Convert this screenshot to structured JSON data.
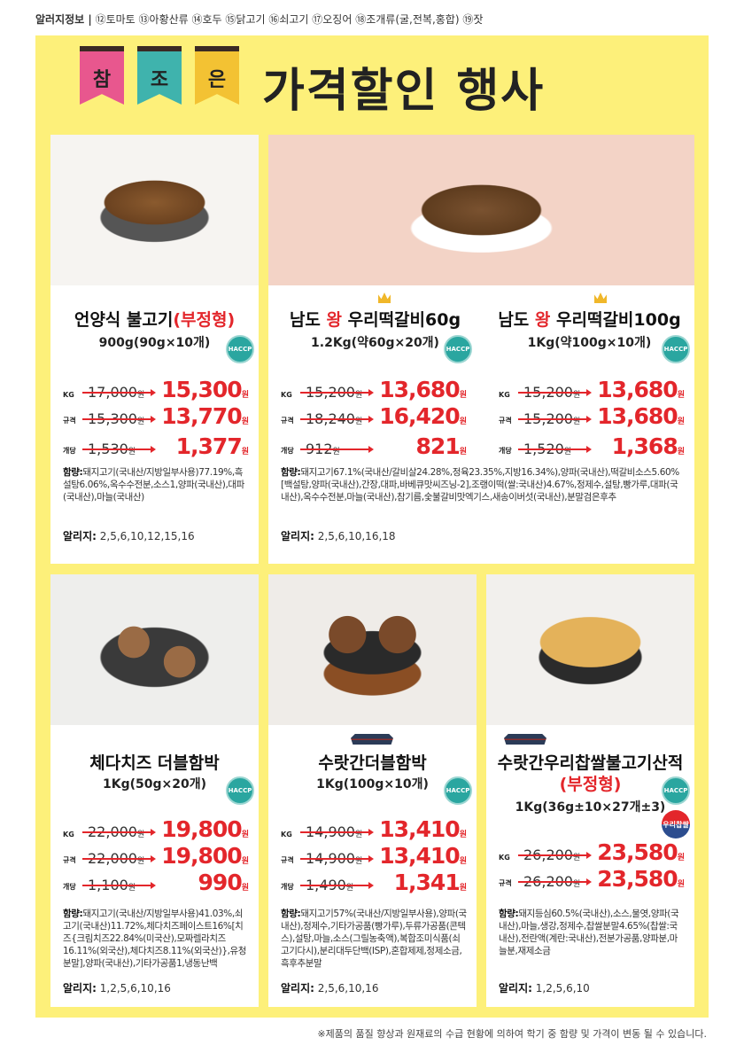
{
  "allergy_info": {
    "label": "알러지정보 |",
    "items": "⑫토마토 ⑬아황산류 ⑭호두 ⑮닭고기 ⑯쇠고기 ⑰오징어 ⑱조개류(굴,전복,홍합) ⑲잣"
  },
  "header": {
    "flags": [
      "참",
      "조",
      "은"
    ],
    "flag_colors": [
      "#e8578e",
      "#3fb3ad",
      "#f3c233"
    ],
    "title": "가격할인 행사"
  },
  "labels": {
    "haccp": "HACCP",
    "woori": "우리찹쌀",
    "won": "원",
    "ingredients": "함량:",
    "allergens": "알리지:"
  },
  "products": [
    {
      "name": "언양식 불고기",
      "name_red": "(부정형)",
      "spec": "900g(90g×10개)",
      "badges": [
        "haccp"
      ],
      "prices": [
        {
          "label": "KG",
          "old": "17,000",
          "new": "15,300"
        },
        {
          "label": "규격",
          "old": "15,300",
          "new": "13,770"
        },
        {
          "label": "개당",
          "old": "1,530",
          "new": "1,377"
        }
      ],
      "ingredients": "돼지고기(국내산/지방일부사용)77.19%,흑설탕6.06%,옥수수전분,소스1,양파(국내산),대파(국내산),마늘(국내산)",
      "allergens": "2,5,6,10,12,15,16"
    },
    {
      "name_pre": "남도 ",
      "name_red": "왕",
      "name": " 우리떡갈비60g",
      "spec": "1.2Kg(약60g×20개)",
      "badges": [
        "haccp",
        "crown"
      ],
      "prices": [
        {
          "label": "KG",
          "old": "15,200",
          "new": "13,680"
        },
        {
          "label": "규격",
          "old": "18,240",
          "new": "16,420"
        },
        {
          "label": "개당",
          "old": "912",
          "new": "821"
        }
      ]
    },
    {
      "name_pre": "남도 ",
      "name_red": "왕",
      "name": " 우리떡갈비100g",
      "spec": "1Kg(약100g×10개)",
      "badges": [
        "haccp",
        "crown"
      ],
      "prices": [
        {
          "label": "KG",
          "old": "15,200",
          "new": "13,680"
        },
        {
          "label": "규격",
          "old": "15,200",
          "new": "13,680"
        },
        {
          "label": "개당",
          "old": "1,520",
          "new": "1,368"
        }
      ]
    },
    {
      "name": "체다치즈 더블함박",
      "spec": "1Kg(50g×20개)",
      "badges": [
        "haccp"
      ],
      "prices": [
        {
          "label": "KG",
          "old": "22,000",
          "new": "19,800"
        },
        {
          "label": "규격",
          "old": "22,000",
          "new": "19,800"
        },
        {
          "label": "개당",
          "old": "1,100",
          "new": "990"
        }
      ],
      "ingredients": "돼지고기(국내산/지방일부사용)41.03%,쇠고기(국내산)11.72%,체다치즈페이스트16%[치즈{크림치즈22.84%(미국산),모짜렐라치즈16.11%(외국산),체다치즈8.11%(외국산)},유청분말],양파(국내산),기타가공품1,냉동난백",
      "allergens": "1,2,5,6,10,16"
    },
    {
      "name": "수랏간더블함박",
      "spec": "1Kg(100g×10개)",
      "badges": [
        "haccp",
        "palace"
      ],
      "prices": [
        {
          "label": "KG",
          "old": "14,900",
          "new": "13,410"
        },
        {
          "label": "규격",
          "old": "14,900",
          "new": "13,410"
        },
        {
          "label": "개당",
          "old": "1,490",
          "new": "1,341"
        }
      ],
      "ingredients": "돼지고기57%(국내산/지방일부사용),양파(국내산),정제수,기타가공품(빵가루),두류가공품(콘텍스),설탕,마늘,소스(그릴농축액),복합조미식품(쇠고기다시),분리대두단백(ISP),혼합제제,정제소금,흑후추분말",
      "allergens": "2,5,6,10,16"
    },
    {
      "name": "수랏간우리찹쌀불고기산적",
      "name_red": "(부정형)",
      "spec": "1Kg(36g±10×27개±3)",
      "badges": [
        "haccp",
        "woori",
        "palace"
      ],
      "prices": [
        {
          "label": "KG",
          "old": "26,200",
          "new": "23,580"
        },
        {
          "label": "규격",
          "old": "26,200",
          "new": "23,580"
        }
      ],
      "ingredients": "돼지등심60.5%(국내산),소스,물엿,양파(국내산),마늘,생강,정제수,찹쌀분말4.65%(찹쌀:국내산),전란액(계란:국내산),전분가공품,양파분,마늘분,재제소금",
      "allergens": "1,2,5,6,10"
    }
  ],
  "shared_ingredients": "돼지고기67.1%(국내산/갈비살24.28%,정육23.35%,지방16.34%),양파(국내산),떡갈비소스5.60%[백설탕,양파(국내산),간장,대파,바베큐맛씨즈닝-2],조랭이떡(쌀:국내산)4.67%,정제수,설탕,빵가루,대파(국내산),옥수수전분,마늘(국내산),참기름,숯불갈비맛엑기스,새송이버섯(국내산),분말검은후추",
  "shared_allergens": "2,5,6,10,16,18",
  "footer": "※제품의 품질 향상과 원재료의 수급 현황에 의하여 학기 중 함량 및 가격이 변동 될 수 있습니다."
}
